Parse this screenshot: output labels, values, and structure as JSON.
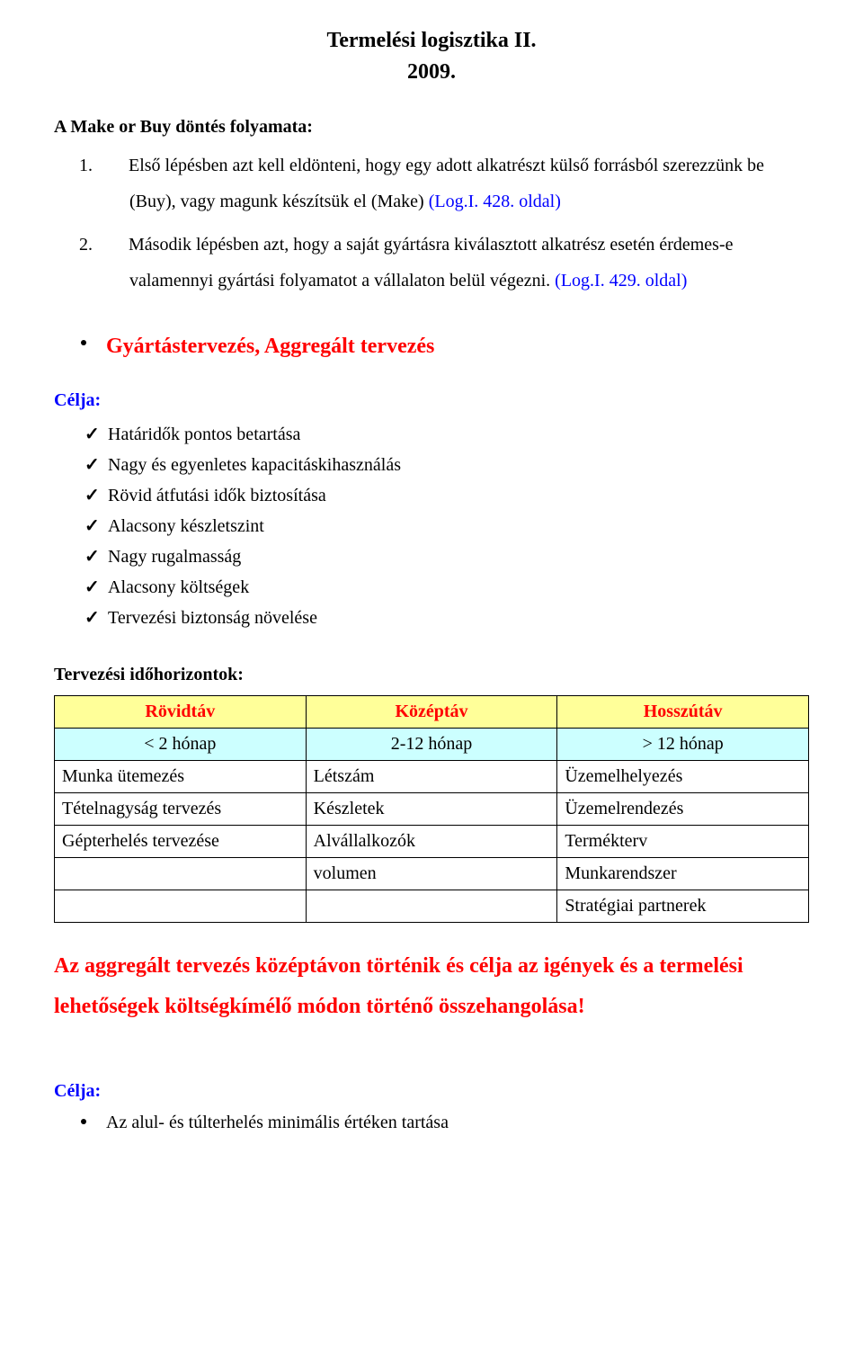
{
  "title": "Termelési logisztika II.",
  "year": "2009.",
  "make_or_buy_heading": "A Make or Buy döntés folyamata:",
  "steps": {
    "one_num": "1.",
    "one_text": "Első lépésben azt kell eldönteni, hogy egy adott alkatrészt külső forrásból szerezzünk be (Buy), vagy magunk készítsük el (Make) ",
    "one_ref": "(Log.I. 428. oldal)",
    "two_num": "2.",
    "two_text": "Második lépésben azt, hogy a saját gyártásra kiválasztott alkatrész esetén érdemes-e valamennyi gyártási folyamatot a vállalaton belül végezni. ",
    "two_ref": "(Log.I. 429. oldal)"
  },
  "red_bullet": "Gyártástervezés, Aggregált tervezés",
  "celja_label": "Célja:",
  "goals": [
    "Határidők pontos betartása",
    "Nagy és egyenletes kapacitáskihasználás",
    "Rövid átfutási idők biztosítása",
    "Alacsony készletszint",
    "Nagy rugalmasság",
    "Alacsony költségek",
    "Tervezési biztonság növelése"
  ],
  "horizon_heading": "Tervezési időhorizontok:",
  "table": {
    "headers": [
      "Rövidtáv",
      "Középtáv",
      "Hosszútáv"
    ],
    "ranges": [
      "< 2 hónap",
      "2-12 hónap",
      "> 12 hónap"
    ],
    "rows": [
      [
        "Munka ütemezés",
        "Létszám",
        "Üzemelhelyezés"
      ],
      [
        "Tételnagyság tervezés",
        "Készletek",
        "Üzemelrendezés"
      ],
      [
        "Gépterhelés tervezése",
        "Alvállalkozók",
        "Termékterv"
      ],
      [
        "",
        "volumen",
        "Munkarendszer"
      ],
      [
        "",
        "",
        "Stratégiai partnerek"
      ]
    ]
  },
  "summary": "Az aggregált tervezés középtávon történik és célja az igények és a termelési lehetőségek költségkímélő módon történő összehangolása!",
  "celja2": "Célja:",
  "last_bullet": "Az alul- és túlterhelés minimális értéken tartása",
  "colors": {
    "red": "#ff0000",
    "blue": "#0000ff",
    "header_bg": "#ffff99",
    "range_bg": "#ccffff"
  }
}
